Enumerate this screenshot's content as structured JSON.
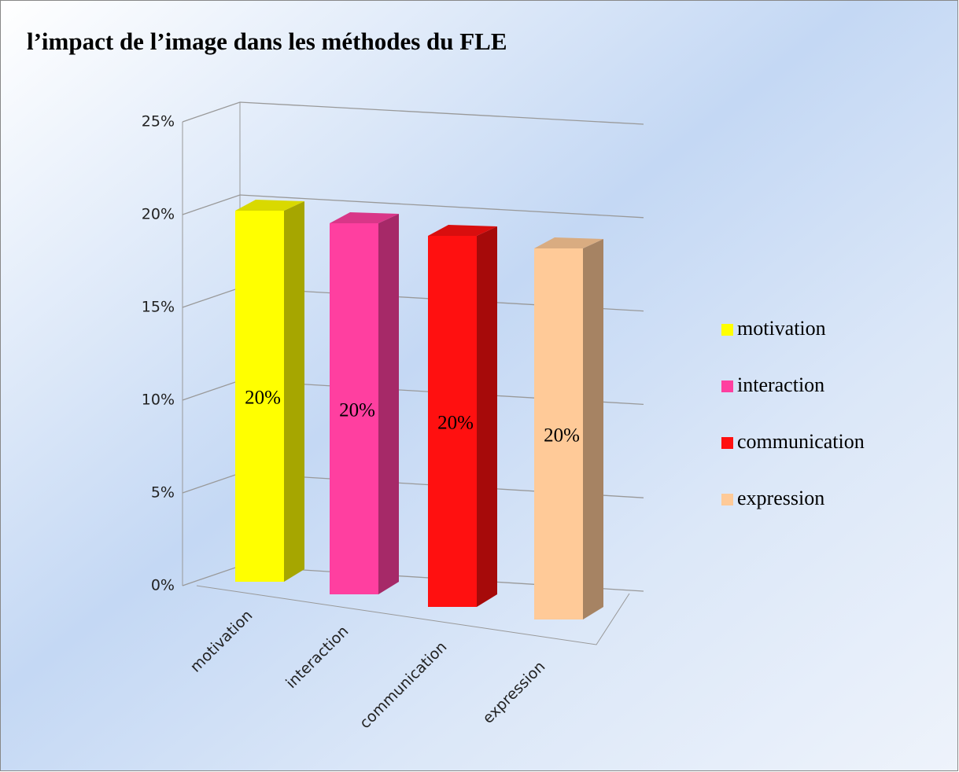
{
  "chart_data": {
    "type": "bar3d",
    "title": "l’impact de l’image dans les méthodes du FLE",
    "categories": [
      "motivation",
      "interaction",
      "communication",
      "expression"
    ],
    "series": [
      {
        "name": "values",
        "values": [
          20,
          20,
          20,
          20
        ],
        "value_labels": [
          "20%",
          "20%",
          "20%",
          "20%"
        ]
      }
    ],
    "colors": [
      "#ffff00",
      "#ff3fa0",
      "#ff1010",
      "#ffca98"
    ],
    "legend": [
      "motivation",
      "interaction",
      "communication",
      "expression"
    ],
    "legend_position": "right",
    "ylim": [
      0,
      25
    ],
    "yticks": [
      {
        "value": 0,
        "label": "0%"
      },
      {
        "value": 5,
        "label": "5%"
      },
      {
        "value": 10,
        "label": "10%"
      },
      {
        "value": 15,
        "label": "15%"
      },
      {
        "value": 20,
        "label": "20%"
      },
      {
        "value": 25,
        "label": "25%"
      }
    ],
    "grid": true
  }
}
